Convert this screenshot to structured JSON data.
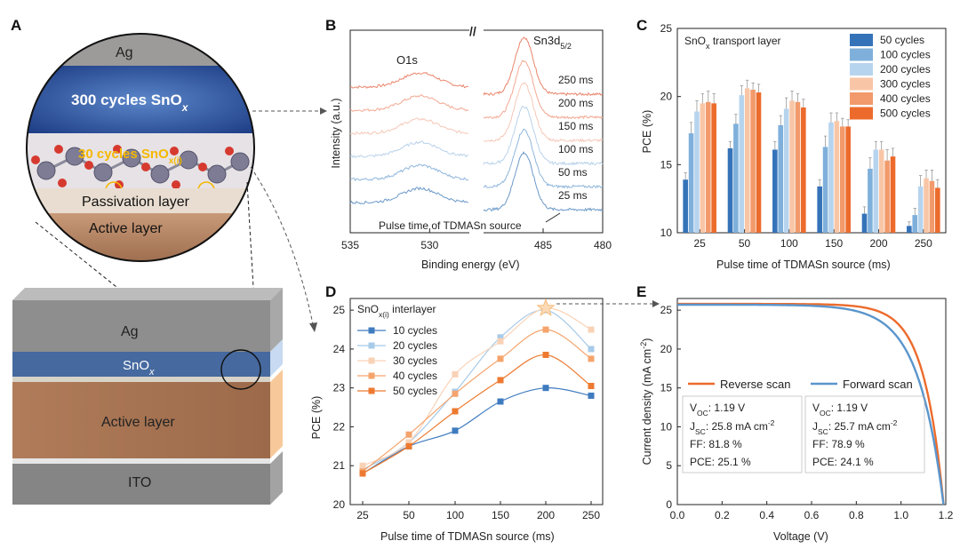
{
  "panels": {
    "a": "A",
    "b": "B",
    "c": "C",
    "d": "D",
    "e": "E"
  },
  "panel_a": {
    "circle": {
      "top": "Ag",
      "mid": "300 cycles SnO",
      "mid_sub": "x",
      "inter": "30 cycles SnO",
      "inter_sub": "x(i)",
      "pass": "Passivation layer",
      "active": "Active layer"
    },
    "stack": {
      "ag": "Ag",
      "snox": "SnO",
      "snox_sub": "x",
      "active": "Active layer",
      "ito": "ITO"
    }
  },
  "colors": {
    "c": [
      "#3573b9",
      "#7fb0db",
      "#b7d4ee",
      "#f8c6a6",
      "#f29a6b",
      "#ec6b2c"
    ],
    "d": [
      "#3f7bbf",
      "#a8cbe9",
      "#f9d2b6",
      "#f5a46c",
      "#ed7a30"
    ],
    "e_rev": "#ec6b2c",
    "e_fwd": "#5b95cc"
  },
  "chart_data": [
    {
      "panel": "B",
      "type": "line",
      "title": "",
      "xlabel": "Binding energy (eV)",
      "ylabel": "Intensity (a.u.)",
      "x_ticks": [
        "535",
        "530",
        "485",
        "480"
      ],
      "xlim_left": [
        535,
        527.5
      ],
      "xlim_right": [
        490,
        480
      ],
      "break_mark": "//",
      "peak_labels": {
        "o1s": "O1s",
        "sn_main": "Sn3d",
        "sn_sub": "5/2"
      },
      "series": [
        {
          "name": "250 ms",
          "offset": 5
        },
        {
          "name": "200 ms",
          "offset": 4
        },
        {
          "name": "150 ms",
          "offset": 3
        },
        {
          "name": "100 ms",
          "offset": 2
        },
        {
          "name": "50 ms",
          "offset": 1
        },
        {
          "name": "25 ms",
          "offset": 0
        }
      ],
      "annotation": "Pulse time of TDMASn source"
    },
    {
      "panel": "C",
      "type": "bar",
      "title": "SnO",
      "title_sub": "x",
      "title_rest": " transport layer",
      "xlabel": "Pulse time of TDMASn source (ms)",
      "ylabel": "PCE (%)",
      "ylim": [
        10,
        25
      ],
      "yticks": [
        "10",
        "15",
        "20",
        "25"
      ],
      "categories": [
        "25",
        "50",
        "100",
        "150",
        "200",
        "250"
      ],
      "series": [
        {
          "name": "50 cycles",
          "values": [
            13.9,
            16.2,
            16.1,
            13.4,
            11.4,
            10.5
          ],
          "err": [
            0.5,
            0.5,
            0.6,
            0.5,
            0.5,
            0.3
          ]
        },
        {
          "name": "100 cycles",
          "values": [
            17.3,
            18.0,
            17.9,
            16.3,
            14.7,
            11.3
          ],
          "err": [
            0.8,
            0.7,
            0.7,
            0.8,
            0.8,
            0.5
          ]
        },
        {
          "name": "200 cycles",
          "values": [
            18.9,
            20.1,
            19.1,
            18.1,
            16.1,
            13.4
          ],
          "err": [
            0.8,
            0.7,
            0.8,
            0.7,
            0.6,
            0.8
          ]
        },
        {
          "name": "300 cycles",
          "values": [
            19.5,
            20.6,
            19.7,
            18.2,
            16.1,
            14.0
          ],
          "err": [
            0.7,
            0.6,
            0.7,
            0.6,
            0.6,
            0.6
          ]
        },
        {
          "name": "400 cycles",
          "values": [
            19.6,
            20.5,
            19.6,
            17.8,
            15.3,
            13.8
          ],
          "err": [
            0.8,
            0.5,
            0.6,
            0.6,
            0.8,
            0.8
          ]
        },
        {
          "name": "500 cycles",
          "values": [
            19.5,
            20.3,
            19.2,
            17.8,
            15.6,
            13.3
          ],
          "err": [
            0.7,
            0.6,
            0.6,
            0.5,
            0.6,
            0.6
          ]
        }
      ]
    },
    {
      "panel": "D",
      "type": "line",
      "title": "SnO",
      "title_sub": "x(i)",
      "title_rest": " interlayer",
      "xlabel": "Pulse time of TDMASn source (ms)",
      "ylabel": "PCE (%)",
      "ylim": [
        20,
        25.3
      ],
      "yticks": [
        "20",
        "21",
        "22",
        "23",
        "24",
        "25"
      ],
      "x": [
        25,
        50,
        100,
        150,
        200,
        250
      ],
      "xticks": [
        "25",
        "50",
        "100",
        "150",
        "200",
        "250"
      ],
      "series": [
        {
          "name": "10 cycles",
          "values": [
            20.8,
            21.5,
            21.9,
            22.65,
            23.0,
            22.8
          ]
        },
        {
          "name": "20 cycles",
          "values": [
            20.9,
            21.6,
            22.9,
            24.3,
            25.0,
            24.0
          ]
        },
        {
          "name": "30 cycles",
          "values": [
            21.0,
            21.6,
            23.35,
            24.2,
            25.05,
            24.5
          ]
        },
        {
          "name": "40 cycles",
          "values": [
            20.85,
            21.8,
            22.85,
            23.75,
            24.5,
            23.75
          ]
        },
        {
          "name": "50 cycles",
          "values": [
            20.8,
            21.5,
            22.4,
            23.2,
            23.85,
            23.05
          ]
        }
      ],
      "star_point": {
        "x": 200,
        "y": 25.05
      }
    },
    {
      "panel": "E",
      "type": "line",
      "xlabel": "Voltage (V)",
      "ylabel": "Current density (mA cm",
      "ylabel_sup": "-2",
      "ylabel_end": ")",
      "xlim": [
        0,
        1.2
      ],
      "ylim": [
        0,
        26.5
      ],
      "xticks": [
        "0.0",
        "0.2",
        "0.4",
        "0.6",
        "0.8",
        "1.0",
        "1.2"
      ],
      "yticks": [
        "0",
        "5",
        "10",
        "15",
        "20",
        "25"
      ],
      "series": [
        {
          "name": "Reverse scan",
          "voc": 1.19,
          "jsc": 25.8,
          "ff": 81.8,
          "pce": 25.1
        },
        {
          "name": "Forward scan",
          "voc": 1.19,
          "jsc": 25.7,
          "ff": 78.9,
          "pce": 24.1
        }
      ],
      "metrics": {
        "reverse": {
          "voc_pre": "V",
          "voc_sub": "OC",
          "voc_val": ": 1.19 V",
          "jsc_pre": "J",
          "jsc_sub": "SC",
          "jsc_val": ": 25.8 mA cm",
          "jsc_sup": "-2",
          "ff": "FF: 81.8 %",
          "pce": "PCE: 25.1 %"
        },
        "forward": {
          "voc_pre": "V",
          "voc_sub": "OC",
          "voc_val": ": 1.19 V",
          "jsc_pre": "J",
          "jsc_sub": "SC",
          "jsc_val": ": 25.7 mA cm",
          "jsc_sup": "-2",
          "ff": "FF: 78.9 %",
          "pce": "PCE: 24.1 %"
        }
      }
    }
  ]
}
